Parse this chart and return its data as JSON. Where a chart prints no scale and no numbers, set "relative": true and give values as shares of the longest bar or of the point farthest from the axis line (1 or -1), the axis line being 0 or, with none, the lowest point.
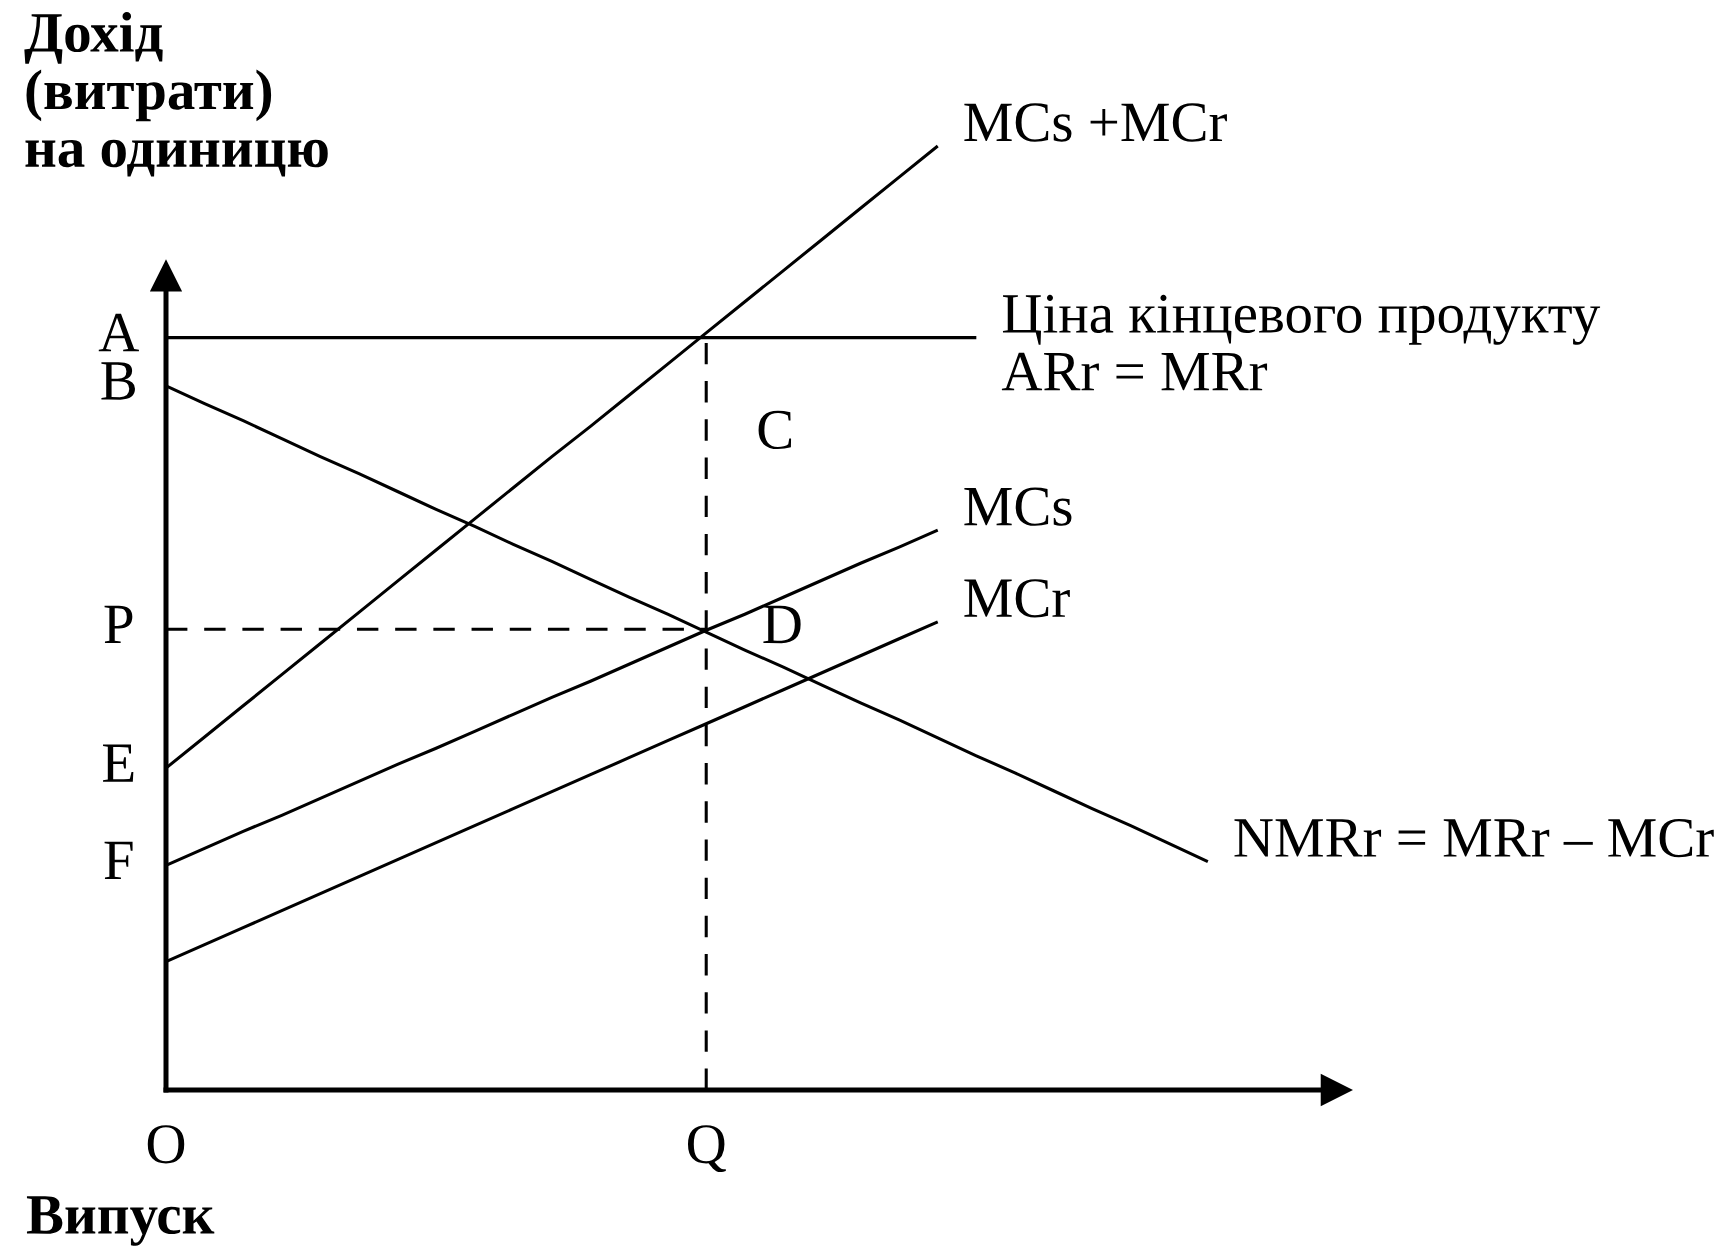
{
  "chart_data": {
    "type": "line",
    "relative": true,
    "ylabel": "Дохід\n(витрати)\nна одиницю",
    "xlabel": "Випуск",
    "categories": [
      "O",
      null,
      null,
      null,
      null,
      null,
      null,
      null,
      null,
      null,
      null,
      null,
      null,
      null,
      "Q",
      null,
      null,
      null,
      null,
      null,
      null,
      null,
      null,
      null,
      null,
      null,
      null,
      null
    ],
    "series": [
      {
        "name": "Ціна кінцевого продукту\nARr = MRr",
        "color": "#000000",
        "values": [
          0.797,
          0.797,
          0.797,
          0.797,
          0.797,
          0.797,
          0.797,
          0.797,
          0.797,
          0.797,
          0.797,
          0.797,
          0.797,
          0.797,
          0.797,
          0.797,
          0.797,
          0.797,
          0.797,
          0.797,
          0.797,
          0.797,
          null,
          null,
          null,
          null,
          null,
          null
        ]
      },
      {
        "name": "NMRr = MRr – MCr",
        "color": "#000000",
        "values": [
          0.746,
          0.727,
          0.709,
          0.69,
          0.671,
          0.653,
          0.634,
          0.615,
          0.597,
          0.578,
          0.56,
          0.541,
          0.522,
          0.504,
          0.485,
          0.466,
          0.448,
          0.429,
          0.41,
          0.392,
          0.373,
          0.354,
          0.336,
          0.317,
          0.298,
          0.28,
          0.261,
          0.242
        ]
      },
      {
        "name": "MCs +MCr",
        "color": "#000000",
        "values": [
          0.341,
          0.374,
          0.407,
          0.44,
          0.473,
          0.506,
          0.539,
          0.572,
          0.605,
          0.638,
          0.671,
          0.703,
          0.736,
          0.769,
          0.802,
          0.835,
          0.868,
          0.901,
          0.934,
          0.967,
          1.0,
          null,
          null,
          null,
          null,
          null,
          null,
          null
        ]
      },
      {
        "name": "MCs",
        "color": "#000000",
        "values": [
          0.238,
          0.256,
          0.274,
          0.291,
          0.309,
          0.327,
          0.345,
          0.362,
          0.38,
          0.398,
          0.416,
          0.433,
          0.451,
          0.469,
          0.487,
          0.504,
          0.522,
          0.54,
          0.558,
          0.575,
          0.593,
          null,
          null,
          null,
          null,
          null,
          null,
          null
        ]
      },
      {
        "name": "MCr",
        "color": "#000000",
        "values": [
          0.136,
          0.154,
          0.172,
          0.19,
          0.208,
          0.226,
          0.244,
          0.262,
          0.28,
          0.298,
          0.316,
          0.334,
          0.352,
          0.37,
          0.388,
          0.406,
          0.424,
          0.442,
          0.46,
          0.478,
          0.496,
          null,
          null,
          null,
          null,
          null,
          null,
          null
        ]
      },
      {
        "color": "#000000",
        "line_style": "dashed",
        "values": [
          0.488,
          0.488,
          0.488,
          0.488,
          0.488,
          0.488,
          0.488,
          0.488,
          0.488,
          0.488,
          0.488,
          0.488,
          0.488,
          0.488,
          0.488,
          null,
          null,
          null,
          null,
          null,
          null,
          null,
          null,
          null,
          null,
          null,
          null,
          null
        ]
      }
    ],
    "ref_lines": [
      {
        "axis": "x",
        "value": "Q",
        "color": "#000000",
        "line_style": "dashed"
      }
    ],
    "annotations": [
      {
        "text": "A",
        "x": "O",
        "y": 0.797
      },
      {
        "text": "B",
        "x": "O",
        "y": 0.746
      },
      {
        "text": "C",
        "x": "Q",
        "y": 0.797
      },
      {
        "text": "P",
        "x": "O",
        "y": 0.488
      },
      {
        "text": "D",
        "x": "Q",
        "y": 0.488
      },
      {
        "text": "E",
        "x": "O",
        "y": 0.341
      },
      {
        "text": "F",
        "x": "O",
        "y": 0.238
      }
    ]
  }
}
